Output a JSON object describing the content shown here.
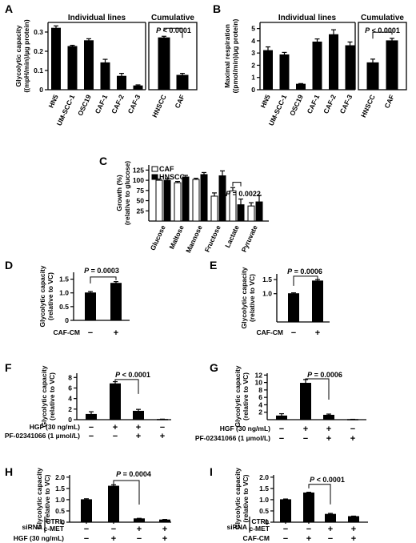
{
  "figure": {
    "letters": [
      "A",
      "B",
      "C",
      "D",
      "E",
      "F",
      "G",
      "H",
      "I"
    ]
  },
  "chart_data": [
    {
      "id": "A1",
      "panel": "A",
      "type": "bar",
      "group_title": "Individual lines",
      "ylabel": "Glycolytic capacity\n((mpH/min)/µg protein)",
      "ylim": [
        0,
        0.35
      ],
      "yticks": [
        0,
        0.1,
        0.2,
        0.3
      ],
      "ytick_labels": [
        "0",
        "0.1",
        "0.2",
        "0.3"
      ],
      "categories": [
        "HN5",
        "UM-SCC-1",
        "OSC19",
        "CAF-1",
        "CAF-2",
        "CAF-3"
      ],
      "values": [
        0.32,
        0.225,
        0.255,
        0.14,
        0.07,
        0.02
      ],
      "errors": [
        0.012,
        0.006,
        0.01,
        0.018,
        0.015,
        0.005
      ]
    },
    {
      "id": "A2",
      "panel": "A",
      "type": "bar",
      "group_title": "Cumulative",
      "ylim": [
        0,
        0.35
      ],
      "yticks": [
        0,
        0.1,
        0.2,
        0.3
      ],
      "categories": [
        "HNSCC",
        "CAF"
      ],
      "values": [
        0.27,
        0.075
      ],
      "errors": [
        0.008,
        0.01
      ],
      "annotation": "P < 0.0001"
    },
    {
      "id": "B1",
      "panel": "B",
      "type": "bar",
      "group_title": "Individual lines",
      "ylabel": "Maximal respiration\n((pmol/min)/µg protein)",
      "ylim": [
        0,
        5.5
      ],
      "yticks": [
        0,
        1,
        2,
        3,
        4,
        5
      ],
      "ytick_labels": [
        "0",
        "1",
        "2",
        "3",
        "4",
        "5"
      ],
      "categories": [
        "HN5",
        "UM-SCC-1",
        "OSC19",
        "CAF-1",
        "CAF-2",
        "CAF-3"
      ],
      "values": [
        3.2,
        2.85,
        0.45,
        3.9,
        4.5,
        3.6
      ],
      "errors": [
        0.3,
        0.2,
        0.05,
        0.25,
        0.4,
        0.3
      ]
    },
    {
      "id": "B2",
      "panel": "B",
      "type": "bar",
      "group_title": "Cumulative",
      "ylim": [
        0,
        5.5
      ],
      "yticks": [
        0,
        1,
        2,
        3,
        4,
        5
      ],
      "categories": [
        "HNSCC",
        "CAF"
      ],
      "values": [
        2.2,
        4.0
      ],
      "errors": [
        0.3,
        0.2
      ],
      "annotation": "P < 0.0001"
    },
    {
      "id": "C",
      "panel": "C",
      "type": "bar",
      "ylabel": "Growth (%)\n(relative to glucose)",
      "ylim": [
        0,
        137.5
      ],
      "yticks": [
        25,
        50,
        75,
        100,
        125
      ],
      "ytick_labels": [
        "25",
        "50",
        "75",
        "100",
        "125"
      ],
      "categories": [
        "Glucose",
        "Maltose",
        "Mannose",
        "Fructose",
        "Lactate",
        "Pyruvate"
      ],
      "series": [
        {
          "name": "CAF",
          "values": [
            100,
            94,
            102,
            61,
            74,
            37
          ],
          "errors": [
            3,
            3,
            3,
            8,
            8,
            8
          ]
        },
        {
          "name": "HNSCC",
          "values": [
            100,
            108,
            114,
            111,
            40,
            47
          ],
          "errors": [
            4,
            4,
            5,
            12,
            14,
            16
          ]
        }
      ],
      "annotation": "P = 0.0022"
    },
    {
      "id": "D",
      "panel": "D",
      "type": "bar",
      "ylabel": "Glycolytic capacity\n(relative to VC)",
      "ylim": [
        0,
        1.75
      ],
      "yticks": [
        0,
        0.5,
        1.0,
        1.5
      ],
      "ytick_labels": [
        "0",
        "0.5",
        "1.0",
        "1.5"
      ],
      "treatment_rows": [
        {
          "label": "CAF-CM",
          "marks": [
            "−",
            "+"
          ]
        }
      ],
      "values": [
        1.0,
        1.35
      ],
      "errors": [
        0.05,
        0.06
      ],
      "annotation": "P = 0.0003"
    },
    {
      "id": "E",
      "panel": "E",
      "type": "bar",
      "ylabel": "Glycolytic capacity\n(relative to VC)",
      "ylim": [
        0,
        1.7
      ],
      "yticks": [
        1.0,
        1.5
      ],
      "ytick_labels": [
        "1.0",
        "1.5"
      ],
      "treatment_rows": [
        {
          "label": "CAF-CM",
          "marks": [
            "−",
            "+"
          ]
        }
      ],
      "values": [
        1.0,
        1.45
      ],
      "errors": [
        0.03,
        0.05
      ],
      "annotation": "P = 0.0006"
    },
    {
      "id": "F",
      "panel": "F",
      "type": "bar",
      "ylabel": "Glycolytic capacity\n(relative to VC)",
      "ylim": [
        0,
        8.8
      ],
      "yticks": [
        0,
        2,
        4,
        6,
        8
      ],
      "ytick_labels": [
        "0",
        "2",
        "4",
        "6",
        "8"
      ],
      "treatment_rows": [
        {
          "label": "HGF (30 ng/mL)",
          "marks": [
            "−",
            "+",
            "+",
            "−"
          ]
        },
        {
          "label": "PF-02341066 (1 µmol/L)",
          "marks": [
            "−",
            "−",
            "+",
            "+"
          ]
        }
      ],
      "values": [
        1.0,
        6.8,
        1.6,
        0.05
      ],
      "errors": [
        0.5,
        0.4,
        0.35,
        0.05
      ],
      "annotation": "P < 0.0001"
    },
    {
      "id": "G",
      "panel": "G",
      "type": "bar",
      "ylabel": "Glycolytic capacity\n(relative to VC)",
      "ylim": [
        0,
        12.5
      ],
      "yticks": [
        2,
        4,
        6,
        8,
        10,
        12
      ],
      "ytick_labels": [
        "2",
        "4",
        "6",
        "8",
        "10",
        "12"
      ],
      "treatment_rows": [
        {
          "label": "HGF (30 ng/mL)",
          "marks": [
            "−",
            "+",
            "+",
            "−"
          ]
        },
        {
          "label": "PF-02341066 (1 µmol/L)",
          "marks": [
            "−",
            "−",
            "+",
            "+"
          ]
        }
      ],
      "values": [
        1.0,
        9.8,
        1.2,
        0.05
      ],
      "errors": [
        0.6,
        1.0,
        0.3,
        0.05
      ],
      "annotation": "P = 0.0006"
    },
    {
      "id": "H",
      "panel": "H",
      "type": "bar",
      "ylabel": "Glycolytic capacity\n(relative to VC)",
      "ylim": [
        0,
        2.1
      ],
      "yticks": [
        0,
        0.5,
        1.0,
        1.5,
        2.0
      ],
      "ytick_labels": [
        "0",
        "0.5",
        "1.0",
        "1.5",
        "2.0"
      ],
      "treatment_rows": [
        {
          "label": "CTRL",
          "marks": [
            "+",
            "+",
            "−",
            "−"
          ]
        },
        {
          "label": "c-MET",
          "marks": [
            "−",
            "−",
            "+",
            "+"
          ]
        },
        {
          "label": "HGF (30 ng/mL)",
          "marks": [
            "−",
            "+",
            "−",
            "+"
          ]
        }
      ],
      "bracket_label": "siRNA",
      "values": [
        1.0,
        1.6,
        0.15,
        0.1
      ],
      "errors": [
        0.04,
        0.06,
        0.02,
        0.02
      ],
      "annotation": "P = 0.0004"
    },
    {
      "id": "I",
      "panel": "I",
      "type": "bar",
      "ylabel": "Glycolytic capacity\n(relative to VC)",
      "ylim": [
        0,
        2.1
      ],
      "yticks": [
        0,
        0.5,
        1.0,
        1.5,
        2.0
      ],
      "ytick_labels": [
        "0",
        "0.5",
        "1.0",
        "1.5",
        "2.0"
      ],
      "treatment_rows": [
        {
          "label": "CTRL",
          "marks": [
            "+",
            "+",
            "−",
            "−"
          ]
        },
        {
          "label": "c-MET",
          "marks": [
            "−",
            "−",
            "+",
            "+"
          ]
        },
        {
          "label": "CAF-CM",
          "marks": [
            "−",
            "+",
            "−",
            "+"
          ]
        }
      ],
      "bracket_label": "siRNA",
      "values": [
        1.0,
        1.3,
        0.35,
        0.25
      ],
      "errors": [
        0.03,
        0.03,
        0.04,
        0.02
      ],
      "annotation": "P < 0.0001"
    }
  ]
}
